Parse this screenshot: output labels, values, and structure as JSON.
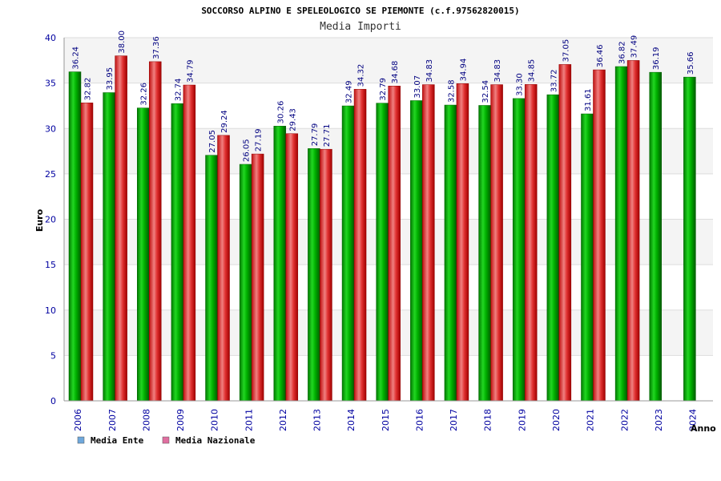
{
  "chart_data": {
    "type": "bar",
    "title": "SOCCORSO ALPINO E SPELEOLOGICO SE PIEMONTE (c.f.97562820015)",
    "subtitle": "Media Importi",
    "xlabel": "Anno",
    "ylabel": "Euro",
    "ylim": [
      0,
      40
    ],
    "yticks": [
      0,
      5,
      10,
      15,
      20,
      25,
      30,
      35,
      40
    ],
    "categories": [
      "2006",
      "2007",
      "2008",
      "2009",
      "2010",
      "2011",
      "2012",
      "2013",
      "2014",
      "2015",
      "2016",
      "2017",
      "2018",
      "2019",
      "2020",
      "2021",
      "2022",
      "2023",
      "2024"
    ],
    "series": [
      {
        "name": "Media Ente",
        "legend_color": "#6fa8dc",
        "values": [
          36.24,
          33.95,
          32.26,
          32.74,
          27.05,
          26.05,
          30.26,
          27.79,
          32.49,
          32.79,
          33.07,
          32.58,
          32.54,
          33.3,
          33.72,
          31.61,
          36.82,
          36.19,
          35.66
        ],
        "labels": [
          "36.24",
          "33.95",
          "32.26",
          "32.74",
          "27.05",
          "26.05",
          "30.26",
          "27.79",
          "32.49",
          "32.79",
          "33.07",
          "32.58",
          "32.54",
          "33.30",
          "33.72",
          "31.61",
          "36.82",
          "36.19",
          "35.66"
        ]
      },
      {
        "name": "Media Nazionale",
        "legend_color": "#e06fa0",
        "values": [
          32.82,
          38.0,
          37.36,
          34.79,
          29.24,
          27.19,
          29.43,
          27.71,
          34.32,
          34.68,
          34.83,
          34.94,
          34.83,
          34.85,
          37.05,
          36.46,
          37.49,
          null,
          null
        ],
        "labels": [
          "32.82",
          "38.00",
          "37.36",
          "34.79",
          "29.24",
          "27.19",
          "29.43",
          "27.71",
          "34.32",
          "34.68",
          "34.83",
          "34.94",
          "34.83",
          "34.85",
          "37.05",
          "36.46",
          "37.49",
          null,
          null
        ]
      }
    ],
    "grid": true,
    "legend_position": "bottom-left"
  },
  "colors": {
    "ente_bar": "#00b000",
    "nazionale_bar": "#e03030",
    "band_light": "#f4f4f4",
    "band_white": "#ffffff",
    "tick_text": "#0000a0"
  }
}
